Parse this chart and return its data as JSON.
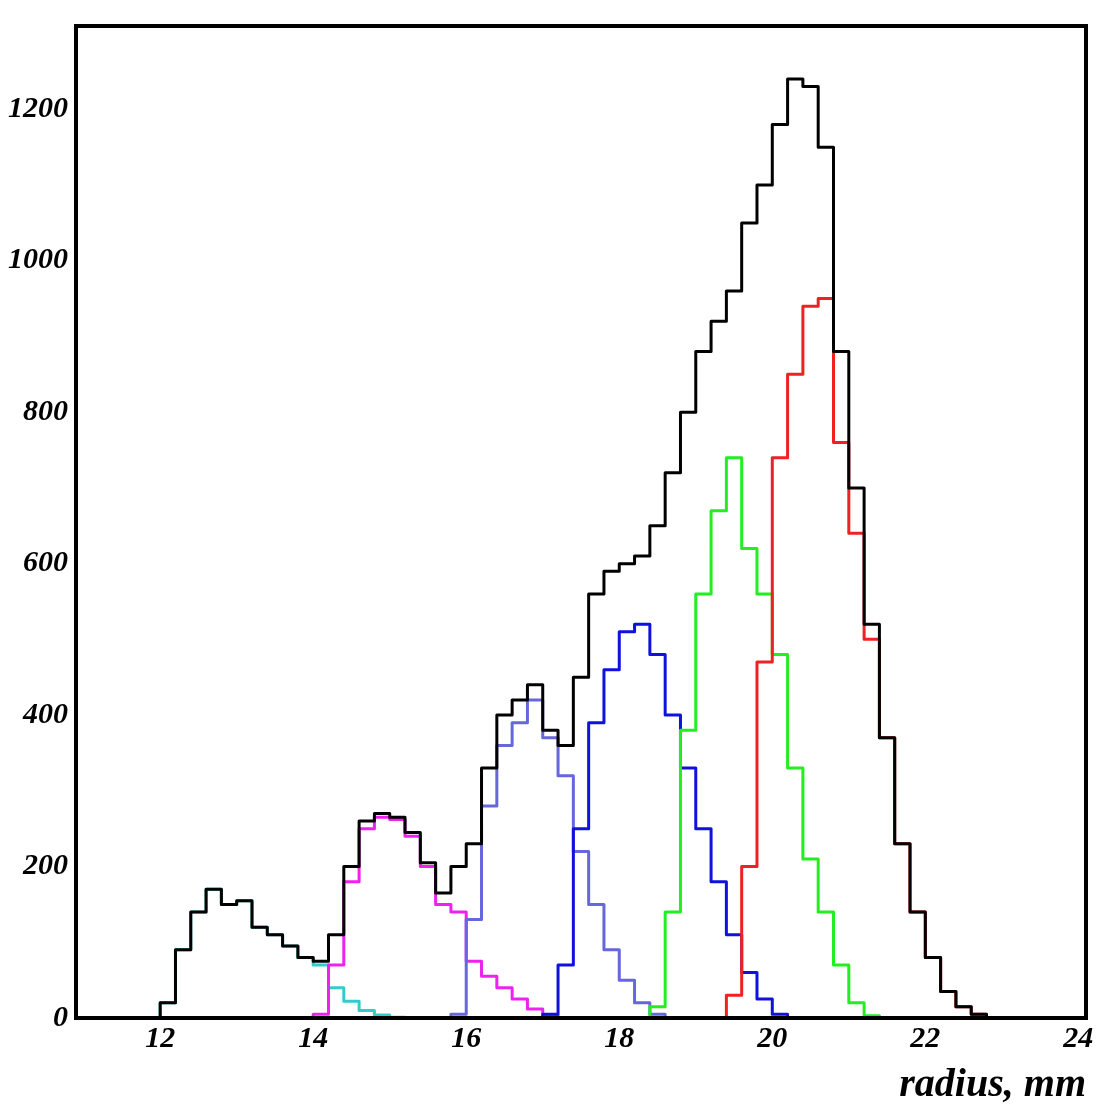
{
  "chart_data": {
    "type": "histogram",
    "xlabel": "radius, mm",
    "bins": [
      11.0,
      11.2,
      11.4,
      11.6,
      11.8,
      12.0,
      12.2,
      12.4,
      12.6,
      12.8,
      13.0,
      13.2,
      13.4,
      13.6,
      13.8,
      14.0,
      14.2,
      14.4,
      14.6,
      14.8,
      15.0,
      15.2,
      15.4,
      15.6,
      15.8,
      16.0,
      16.2,
      16.4,
      16.6,
      16.8,
      17.0,
      17.2,
      17.4,
      17.6,
      17.8,
      18.0,
      18.2,
      18.4,
      18.6,
      18.8,
      19.0,
      19.2,
      19.4,
      19.6,
      19.8,
      20.0,
      20.2,
      20.4,
      20.6,
      20.8,
      21.0,
      21.2,
      21.4,
      21.6,
      21.8,
      22.0,
      22.2,
      22.4,
      22.6,
      22.8,
      23.0,
      23.2,
      23.4,
      23.6,
      23.8,
      24.0
    ],
    "series": [
      {
        "color": "#000000",
        "values": [
          0,
          0,
          0,
          0,
          0,
          20,
          90,
          140,
          170,
          150,
          155,
          120,
          110,
          95,
          80,
          75,
          110,
          200,
          260,
          270,
          265,
          245,
          205,
          165,
          200,
          230,
          330,
          400,
          420,
          440,
          380,
          360,
          450,
          560,
          590,
          600,
          610,
          650,
          720,
          800,
          880,
          920,
          960,
          1050,
          1100,
          1180,
          1240,
          1230,
          1150,
          880,
          700,
          520,
          370,
          230,
          140,
          80,
          35,
          15,
          5,
          0,
          0,
          0,
          0,
          0,
          0
        ]
      },
      {
        "color": "#ee2222",
        "values": [
          0,
          0,
          0,
          0,
          0,
          0,
          0,
          0,
          0,
          0,
          0,
          0,
          0,
          0,
          0,
          0,
          0,
          0,
          0,
          0,
          0,
          0,
          0,
          0,
          0,
          0,
          0,
          0,
          0,
          0,
          0,
          0,
          0,
          0,
          0,
          0,
          0,
          0,
          0,
          0,
          0,
          0,
          30,
          200,
          470,
          740,
          850,
          940,
          950,
          760,
          640,
          500,
          370,
          230,
          140,
          80,
          35,
          15,
          5,
          0,
          0,
          0,
          0,
          0,
          0
        ]
      },
      {
        "color": "#22ee22",
        "values": [
          0,
          0,
          0,
          0,
          0,
          0,
          0,
          0,
          0,
          0,
          0,
          0,
          0,
          0,
          0,
          0,
          0,
          0,
          0,
          0,
          0,
          0,
          0,
          0,
          0,
          0,
          0,
          0,
          0,
          0,
          0,
          0,
          0,
          0,
          0,
          0,
          0,
          15,
          140,
          380,
          560,
          670,
          740,
          620,
          560,
          480,
          330,
          210,
          140,
          70,
          20,
          3,
          0,
          0,
          0,
          0,
          0,
          0,
          0,
          0,
          0,
          0,
          0,
          0,
          0
        ]
      },
      {
        "color": "#1111dd",
        "values": [
          0,
          0,
          0,
          0,
          0,
          0,
          0,
          0,
          0,
          0,
          0,
          0,
          0,
          0,
          0,
          0,
          0,
          0,
          0,
          0,
          0,
          0,
          0,
          0,
          0,
          0,
          0,
          0,
          0,
          0,
          5,
          70,
          250,
          390,
          460,
          510,
          520,
          480,
          400,
          330,
          250,
          180,
          110,
          60,
          25,
          5,
          0,
          0,
          0,
          0,
          0,
          0,
          0,
          0,
          0,
          0,
          0,
          0,
          0,
          0,
          0,
          0,
          0,
          0,
          0
        ]
      },
      {
        "color": "#6666dd",
        "values": [
          0,
          0,
          0,
          0,
          0,
          0,
          0,
          0,
          0,
          0,
          0,
          0,
          0,
          0,
          0,
          0,
          0,
          0,
          0,
          0,
          0,
          0,
          0,
          0,
          5,
          130,
          280,
          360,
          390,
          420,
          370,
          320,
          220,
          150,
          90,
          50,
          20,
          5,
          0,
          0,
          0,
          0,
          0,
          0,
          0,
          0,
          0,
          0,
          0,
          0,
          0,
          0,
          0,
          0,
          0,
          0,
          0,
          0,
          0,
          0,
          0,
          0,
          0,
          0,
          0
        ]
      },
      {
        "color": "#ee22ee",
        "values": [
          0,
          0,
          0,
          0,
          0,
          0,
          0,
          0,
          0,
          0,
          0,
          0,
          0,
          0,
          0,
          5,
          70,
          180,
          250,
          265,
          262,
          240,
          200,
          150,
          140,
          75,
          55,
          40,
          25,
          12,
          3,
          0,
          0,
          0,
          0,
          0,
          0,
          0,
          0,
          0,
          0,
          0,
          0,
          0,
          0,
          0,
          0,
          0,
          0,
          0,
          0,
          0,
          0,
          0,
          0,
          0,
          0,
          0,
          0,
          0,
          0,
          0,
          0,
          0,
          0
        ]
      },
      {
        "color": "#33cccc",
        "values": [
          0,
          0,
          0,
          0,
          0,
          20,
          90,
          140,
          170,
          150,
          155,
          120,
          110,
          95,
          80,
          70,
          40,
          22,
          10,
          4,
          1,
          0,
          0,
          0,
          0,
          0,
          0,
          0,
          0,
          0,
          0,
          0,
          0,
          0,
          0,
          0,
          0,
          0,
          0,
          0,
          0,
          0,
          0,
          0,
          0,
          0,
          0,
          0,
          0,
          0,
          0,
          0,
          0,
          0,
          0,
          0,
          0,
          0,
          0,
          0,
          0,
          0,
          0,
          0,
          0
        ]
      }
    ],
    "xlim": [
      10.9,
      24.1
    ],
    "xticks": [
      12,
      14,
      16,
      18,
      20,
      22,
      24
    ],
    "ylim": [
      0,
      1310
    ],
    "yticks": [
      0,
      200,
      400,
      600,
      800,
      1000,
      1200
    ],
    "grid": false,
    "legend": false
  }
}
